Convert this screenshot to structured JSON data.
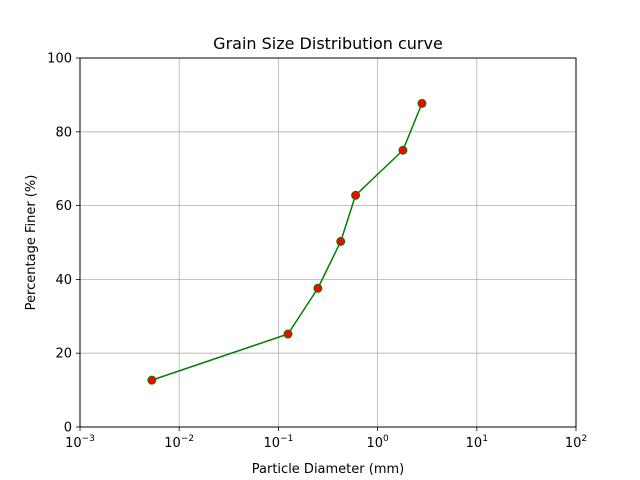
{
  "chart_data": {
    "type": "line",
    "title": "Grain Size Distribution curve",
    "xlabel": "Particle Diameter (mm)",
    "ylabel": "Percentage Finer (%)",
    "x_scale": "log",
    "xlim": [
      0.001,
      100
    ],
    "ylim": [
      0,
      100
    ],
    "grid": true,
    "x_ticks": [
      {
        "value": 0.001,
        "base": "10",
        "exp": "−3"
      },
      {
        "value": 0.01,
        "base": "10",
        "exp": "−2"
      },
      {
        "value": 0.1,
        "base": "10",
        "exp": "−1"
      },
      {
        "value": 1,
        "base": "10",
        "exp": "0"
      },
      {
        "value": 10,
        "base": "10",
        "exp": "1"
      },
      {
        "value": 100,
        "base": "10",
        "exp": "2"
      }
    ],
    "y_ticks": [
      {
        "value": 0,
        "label": "0"
      },
      {
        "value": 20,
        "label": "20"
      },
      {
        "value": 40,
        "label": "40"
      },
      {
        "value": 60,
        "label": "60"
      },
      {
        "value": 80,
        "label": "80"
      },
      {
        "value": 100,
        "label": "100"
      }
    ],
    "series": [
      {
        "line_color": "#008000",
        "marker_face_color": "#ff0000",
        "marker_edge_color": "#008000",
        "x": [
          0.0053,
          0.125,
          0.25,
          0.425,
          0.6,
          1.8,
          2.8
        ],
        "y": [
          12.7,
          25.2,
          37.6,
          50.3,
          62.8,
          75.0,
          87.7
        ]
      }
    ],
    "colors": {
      "grid": "#b0b0b0",
      "axes": "#000000"
    }
  }
}
